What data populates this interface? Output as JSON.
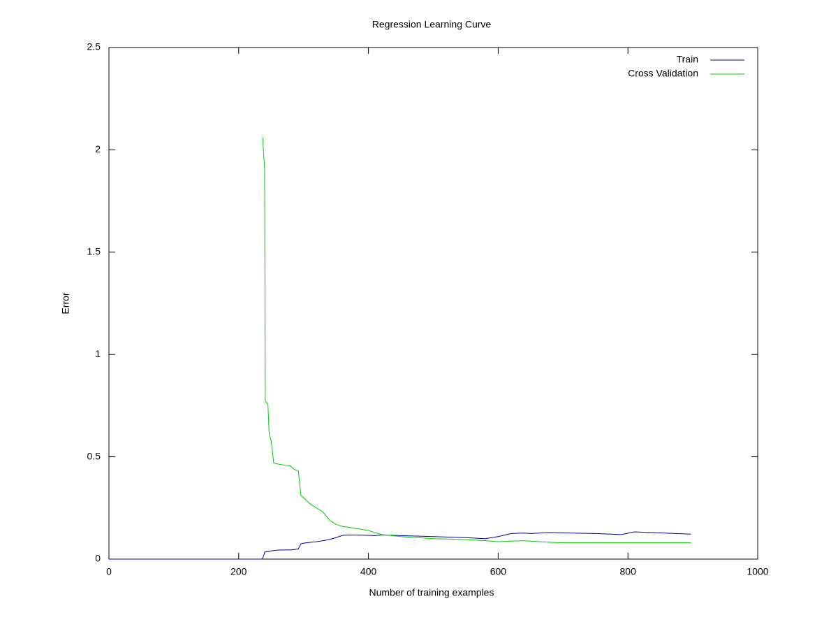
{
  "chart_data": {
    "type": "line",
    "title": "Regression Learning Curve",
    "x_label": "Number of training examples",
    "y_label": "Error",
    "x": [
      0,
      236,
      237,
      239,
      240,
      241,
      245,
      247,
      250,
      254,
      260,
      270,
      280,
      285,
      292,
      296,
      300,
      310,
      320,
      330,
      340,
      350,
      360,
      370,
      390,
      400,
      410,
      420,
      450,
      500,
      550,
      580,
      600,
      620,
      640,
      650,
      680,
      700,
      750,
      790,
      810,
      850,
      897
    ],
    "series": [
      {
        "name": "Train",
        "color": "#0000a0",
        "values": [
          0,
          0,
          0.005,
          0.02,
          0.034,
          0.035,
          0.036,
          0.038,
          0.04,
          0.042,
          0.044,
          0.045,
          0.045,
          0.046,
          0.05,
          0.075,
          0.078,
          0.082,
          0.085,
          0.09,
          0.096,
          0.105,
          0.116,
          0.118,
          0.117,
          0.116,
          0.115,
          0.118,
          0.115,
          0.11,
          0.105,
          0.1,
          0.11,
          0.125,
          0.127,
          0.125,
          0.13,
          0.128,
          0.125,
          0.12,
          0.133,
          0.128,
          0.122
        ]
      },
      {
        "name": "Cross Validation",
        "color": "#00cc00",
        "values": [
          null,
          null,
          2.06,
          1.95,
          1.91,
          0.77,
          0.76,
          0.61,
          0.58,
          0.47,
          0.465,
          0.46,
          0.455,
          0.44,
          0.43,
          0.31,
          0.3,
          0.27,
          0.25,
          0.23,
          0.19,
          0.17,
          0.16,
          0.155,
          0.145,
          0.14,
          0.13,
          0.12,
          0.11,
          0.1,
          0.095,
          0.09,
          0.085,
          0.088,
          0.09,
          0.088,
          0.082,
          0.08,
          0.08,
          0.08,
          0.08,
          0.08,
          0.08
        ]
      }
    ],
    "xlim": [
      0,
      1000
    ],
    "xticks": [
      0,
      200,
      400,
      600,
      800,
      1000
    ],
    "ylim": [
      0,
      2.5
    ],
    "yticks": [
      0,
      0.5,
      1,
      1.5,
      2,
      2.5
    ],
    "legend": "top-right",
    "grid": false
  }
}
